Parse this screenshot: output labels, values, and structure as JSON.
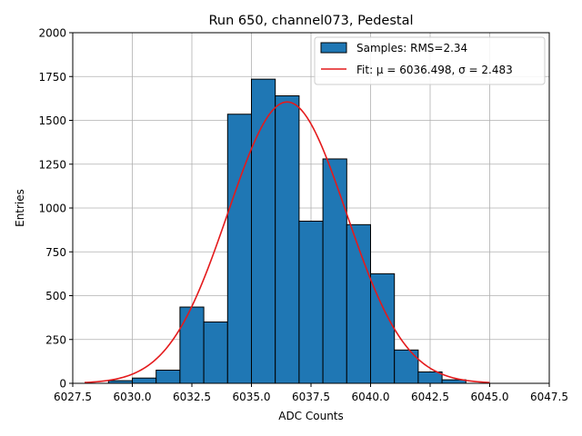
{
  "chart_data": {
    "type": "bar",
    "title": "Run 650, channel073, Pedestal",
    "xlabel": "ADC Counts",
    "ylabel": "Entries",
    "xlim": [
      6027.5,
      6047.5
    ],
    "ylim": [
      0,
      2000
    ],
    "xticks": [
      6027.5,
      6030.0,
      6032.5,
      6035.0,
      6037.5,
      6040.0,
      6042.5,
      6045.0,
      6047.5
    ],
    "xtick_labels": [
      "6027.5",
      "6030.0",
      "6032.5",
      "6035.0",
      "6037.5",
      "6040.0",
      "6042.5",
      "6045.0",
      "6047.5"
    ],
    "yticks": [
      0,
      250,
      500,
      750,
      1000,
      1250,
      1500,
      1750,
      2000
    ],
    "ytick_labels": [
      "0",
      "250",
      "500",
      "750",
      "1000",
      "1250",
      "1500",
      "1750",
      "2000"
    ],
    "grid": true,
    "bin_edges": [
      6029,
      6030,
      6031,
      6032,
      6033,
      6034,
      6035,
      6036,
      6037,
      6038,
      6039,
      6040,
      6041,
      6042,
      6043,
      6044
    ],
    "counts": [
      15,
      30,
      75,
      435,
      350,
      1535,
      1735,
      1640,
      925,
      1280,
      905,
      625,
      190,
      65,
      20
    ],
    "bar_color": "#1f77b4",
    "fit": {
      "mu": 6036.498,
      "sigma": 2.483,
      "amplitude": 1605,
      "x_range": [
        6028.0,
        6045.0
      ],
      "color": "#e41a1c"
    },
    "legend": {
      "location": "top-right",
      "entries": [
        {
          "label": "Samples: RMS=2.34",
          "kind": "patch",
          "color": "#1f77b4"
        },
        {
          "label": "Fit: μ = 6036.498, σ = 2.483",
          "kind": "line",
          "color": "#e41a1c"
        }
      ]
    }
  }
}
